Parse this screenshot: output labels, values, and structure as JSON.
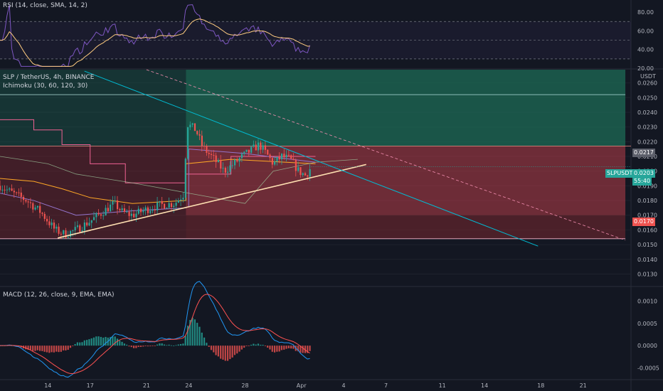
{
  "rsi": {
    "title": "RSI (14, close, SMA, 14, 2)",
    "ticks": [
      "80.00",
      "60.00",
      "40.00",
      "20.00"
    ],
    "tick_values": [
      80,
      60,
      40,
      20
    ],
    "upper_band": 70,
    "lower_band": 30,
    "ylim": [
      20,
      90
    ]
  },
  "main": {
    "title": "SLP / TetherUS, 4h, BINANCE",
    "indicator": "Ichimoku (30, 60, 120, 30)",
    "currency": "USDT",
    "ticks": [
      "0.0260",
      "0.0250",
      "0.0240",
      "0.0230",
      "0.0220",
      "0.0210",
      "0.0200",
      "0.0190",
      "0.0180",
      "0.0170",
      "0.0160",
      "0.0150",
      "0.0140",
      "0.0130"
    ],
    "tick_values": [
      0.026,
      0.025,
      0.024,
      0.023,
      0.022,
      0.021,
      0.02,
      0.019,
      0.018,
      0.017,
      0.016,
      0.015,
      0.014,
      0.013
    ],
    "ylim": [
      0.0122,
      0.0269
    ],
    "badge_stop": "0.0217",
    "badge_symbol": "SLPUSDT",
    "badge_price": "0.0203",
    "badge_time": "55:40",
    "badge_target": "0.0170",
    "colors": {
      "up": "#26a69a",
      "down": "#ef5350",
      "profit": "#1e6b55",
      "loss": "#7a2830",
      "trend": "#ffe0b2",
      "diag": "#00bcd4"
    }
  },
  "macd": {
    "title": "MACD (12, 26, close, 9, EMA, EMA)",
    "ticks": [
      "0.0010",
      "0.0005",
      "0.0000",
      "-0.0005"
    ],
    "tick_values": [
      0.001,
      0.0005,
      0.0,
      -0.0005
    ],
    "ylim": [
      -0.00075,
      0.0013
    ]
  },
  "x_axis": {
    "ticks": [
      "14",
      "17",
      "21",
      "24",
      "28",
      "Apr",
      "4",
      "7",
      "11",
      "14",
      "18",
      "21"
    ],
    "tick_days": [
      14,
      17,
      21,
      24,
      28,
      32,
      35,
      38,
      42,
      45,
      49,
      52
    ],
    "day_range": [
      10.6,
      55.4
    ]
  },
  "chart_data": {
    "type": "candlestick",
    "title": "SLP / TetherUS, 4h, BINANCE",
    "ylabel": "USDT",
    "ylim": [
      0.0122,
      0.0269
    ],
    "position": {
      "entry": 0.0203,
      "stop": 0.0217,
      "target": 0.017,
      "range_upper": 0.0252,
      "range_lower": 0.0154
    },
    "trendlines": [
      {
        "name": "support",
        "from": [
          14.7,
          0.01545
        ],
        "to": [
          36.6,
          0.02045
        ]
      },
      {
        "name": "resistance",
        "from": [
          16.6,
          0.0268
        ],
        "to": [
          48.8,
          0.0149
        ]
      }
    ],
    "price_keypoints": [
      [
        10.6,
        0.019
      ],
      [
        11.5,
        0.0185
      ],
      [
        12.5,
        0.018
      ],
      [
        13.5,
        0.0172
      ],
      [
        14.5,
        0.016
      ],
      [
        15.2,
        0.0157
      ],
      [
        16.0,
        0.016
      ],
      [
        17.0,
        0.0166
      ],
      [
        18.0,
        0.0173
      ],
      [
        18.7,
        0.0178
      ],
      [
        19.3,
        0.0172
      ],
      [
        20.0,
        0.017
      ],
      [
        21.0,
        0.0174
      ],
      [
        22.0,
        0.0177
      ],
      [
        23.0,
        0.0178
      ],
      [
        23.6,
        0.0184
      ],
      [
        23.9,
        0.0232
      ],
      [
        24.5,
        0.0228
      ],
      [
        25.0,
        0.0216
      ],
      [
        25.8,
        0.0208
      ],
      [
        26.5,
        0.02
      ],
      [
        27.2,
        0.0205
      ],
      [
        27.8,
        0.021
      ],
      [
        28.4,
        0.0214
      ],
      [
        29.0,
        0.0218
      ],
      [
        29.5,
        0.0212
      ],
      [
        30.0,
        0.0205
      ],
      [
        30.6,
        0.021
      ],
      [
        31.2,
        0.0208
      ],
      [
        31.8,
        0.02
      ],
      [
        32.3,
        0.0197
      ],
      [
        32.7,
        0.0203
      ]
    ]
  }
}
